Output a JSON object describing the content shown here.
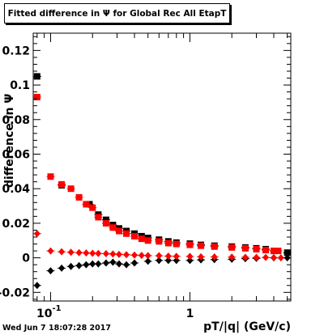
{
  "title": "Fitted difference in  Ψ  for Global Rec All EtapT",
  "ylabel": "difference in Ψ",
  "xlabel": "pT/|q| (GeV/c)",
  "timestamp": "Wed Jun  7 18:07:28 2017",
  "colors": {
    "black_series": "#000000",
    "red_series": "#ff0000",
    "axis": "#000000"
  },
  "chart_data": {
    "type": "scatter",
    "x_scale": "log",
    "xlim": [
      0.075,
      5.3
    ],
    "ylim": [
      -0.025,
      0.13
    ],
    "x_tick_labels": [
      {
        "value": 0.1,
        "label": "10",
        "exponent": "-1"
      },
      {
        "value": 1,
        "label": "1",
        "exponent": ""
      }
    ],
    "y_tick_labels": [
      "-0.02",
      "0",
      "0.02",
      "0.04",
      "0.06",
      "0.08",
      "0.1",
      "0.12"
    ],
    "y_tick_values": [
      -0.02,
      0,
      0.02,
      0.04,
      0.06,
      0.08,
      0.1,
      0.12
    ],
    "grid": false,
    "series": [
      {
        "color": "#000000",
        "marker": "square",
        "points": [
          [
            0.08,
            0.105
          ],
          [
            0.12,
            0.042
          ],
          [
            0.19,
            0.031
          ],
          [
            0.22,
            0.025
          ],
          [
            0.25,
            0.022
          ],
          [
            0.28,
            0.019
          ],
          [
            0.31,
            0.017
          ],
          [
            0.35,
            0.0155
          ],
          [
            0.4,
            0.014
          ],
          [
            0.45,
            0.0125
          ],
          [
            0.5,
            0.0115
          ],
          [
            0.6,
            0.0105
          ],
          [
            0.7,
            0.0095
          ],
          [
            0.8,
            0.0088
          ],
          [
            1.0,
            0.0082
          ],
          [
            1.2,
            0.0075
          ],
          [
            1.5,
            0.007
          ],
          [
            2.0,
            0.0065
          ],
          [
            2.5,
            0.006
          ],
          [
            3.0,
            0.0055
          ],
          [
            3.5,
            0.005
          ],
          [
            4.0,
            0.004
          ],
          [
            5.0,
            0.003
          ]
        ]
      },
      {
        "color": "#ff0000",
        "marker": "square",
        "points": [
          [
            0.08,
            0.093
          ],
          [
            0.1,
            0.047
          ],
          [
            0.12,
            0.0425
          ],
          [
            0.14,
            0.04
          ],
          [
            0.16,
            0.035
          ],
          [
            0.18,
            0.031
          ],
          [
            0.2,
            0.029
          ],
          [
            0.22,
            0.0235
          ],
          [
            0.25,
            0.02
          ],
          [
            0.28,
            0.0175
          ],
          [
            0.31,
            0.0155
          ],
          [
            0.35,
            0.014
          ],
          [
            0.4,
            0.0125
          ],
          [
            0.45,
            0.011
          ],
          [
            0.5,
            0.01
          ],
          [
            0.6,
            0.0095
          ],
          [
            0.7,
            0.0085
          ],
          [
            0.8,
            0.008
          ],
          [
            1.0,
            0.0075
          ],
          [
            1.2,
            0.007
          ],
          [
            1.5,
            0.0065
          ],
          [
            2.0,
            0.006
          ],
          [
            2.5,
            0.0055
          ],
          [
            3.0,
            0.005
          ],
          [
            3.5,
            0.0045
          ],
          [
            4.0,
            0.004
          ],
          [
            4.3,
            0.004
          ]
        ]
      },
      {
        "color": "#000000",
        "marker": "diamond",
        "points": [
          [
            0.08,
            -0.016
          ],
          [
            0.1,
            -0.0075
          ],
          [
            0.12,
            -0.006
          ],
          [
            0.14,
            -0.005
          ],
          [
            0.16,
            -0.0045
          ],
          [
            0.18,
            -0.004
          ],
          [
            0.2,
            -0.0035
          ],
          [
            0.22,
            -0.0035
          ],
          [
            0.25,
            -0.003
          ],
          [
            0.28,
            -0.0025
          ],
          [
            0.31,
            -0.0035
          ],
          [
            0.35,
            -0.004
          ],
          [
            0.4,
            -0.003
          ],
          [
            0.5,
            -0.002
          ],
          [
            0.6,
            -0.0015
          ],
          [
            0.7,
            -0.0015
          ],
          [
            0.8,
            -0.0015
          ],
          [
            1.0,
            -0.0015
          ],
          [
            1.2,
            -0.0012
          ],
          [
            1.5,
            -0.001
          ],
          [
            2.0,
            -0.0008
          ],
          [
            2.5,
            -0.0005
          ],
          [
            3.0,
            -0.0003
          ],
          [
            4.0,
            0.0
          ],
          [
            5.0,
            0.0
          ]
        ]
      },
      {
        "color": "#ff0000",
        "marker": "diamond",
        "points": [
          [
            0.08,
            0.014
          ],
          [
            0.1,
            0.004
          ],
          [
            0.12,
            0.0035
          ],
          [
            0.14,
            0.0032
          ],
          [
            0.16,
            0.003
          ],
          [
            0.18,
            0.0028
          ],
          [
            0.2,
            0.0026
          ],
          [
            0.22,
            0.0025
          ],
          [
            0.25,
            0.0024
          ],
          [
            0.28,
            0.0022
          ],
          [
            0.31,
            0.002
          ],
          [
            0.35,
            0.0018
          ],
          [
            0.4,
            0.0016
          ],
          [
            0.45,
            0.0014
          ],
          [
            0.5,
            0.0013
          ],
          [
            0.6,
            0.0012
          ],
          [
            0.7,
            0.001
          ],
          [
            0.8,
            0.0009
          ],
          [
            1.0,
            0.0008
          ],
          [
            1.2,
            0.0006
          ],
          [
            1.5,
            0.0005
          ],
          [
            2.0,
            0.0004
          ],
          [
            2.5,
            0.0003
          ],
          [
            3.0,
            0.0002
          ],
          [
            3.5,
            0.0002
          ],
          [
            4.0,
            0.0001
          ],
          [
            4.5,
            0.0
          ]
        ]
      }
    ]
  }
}
